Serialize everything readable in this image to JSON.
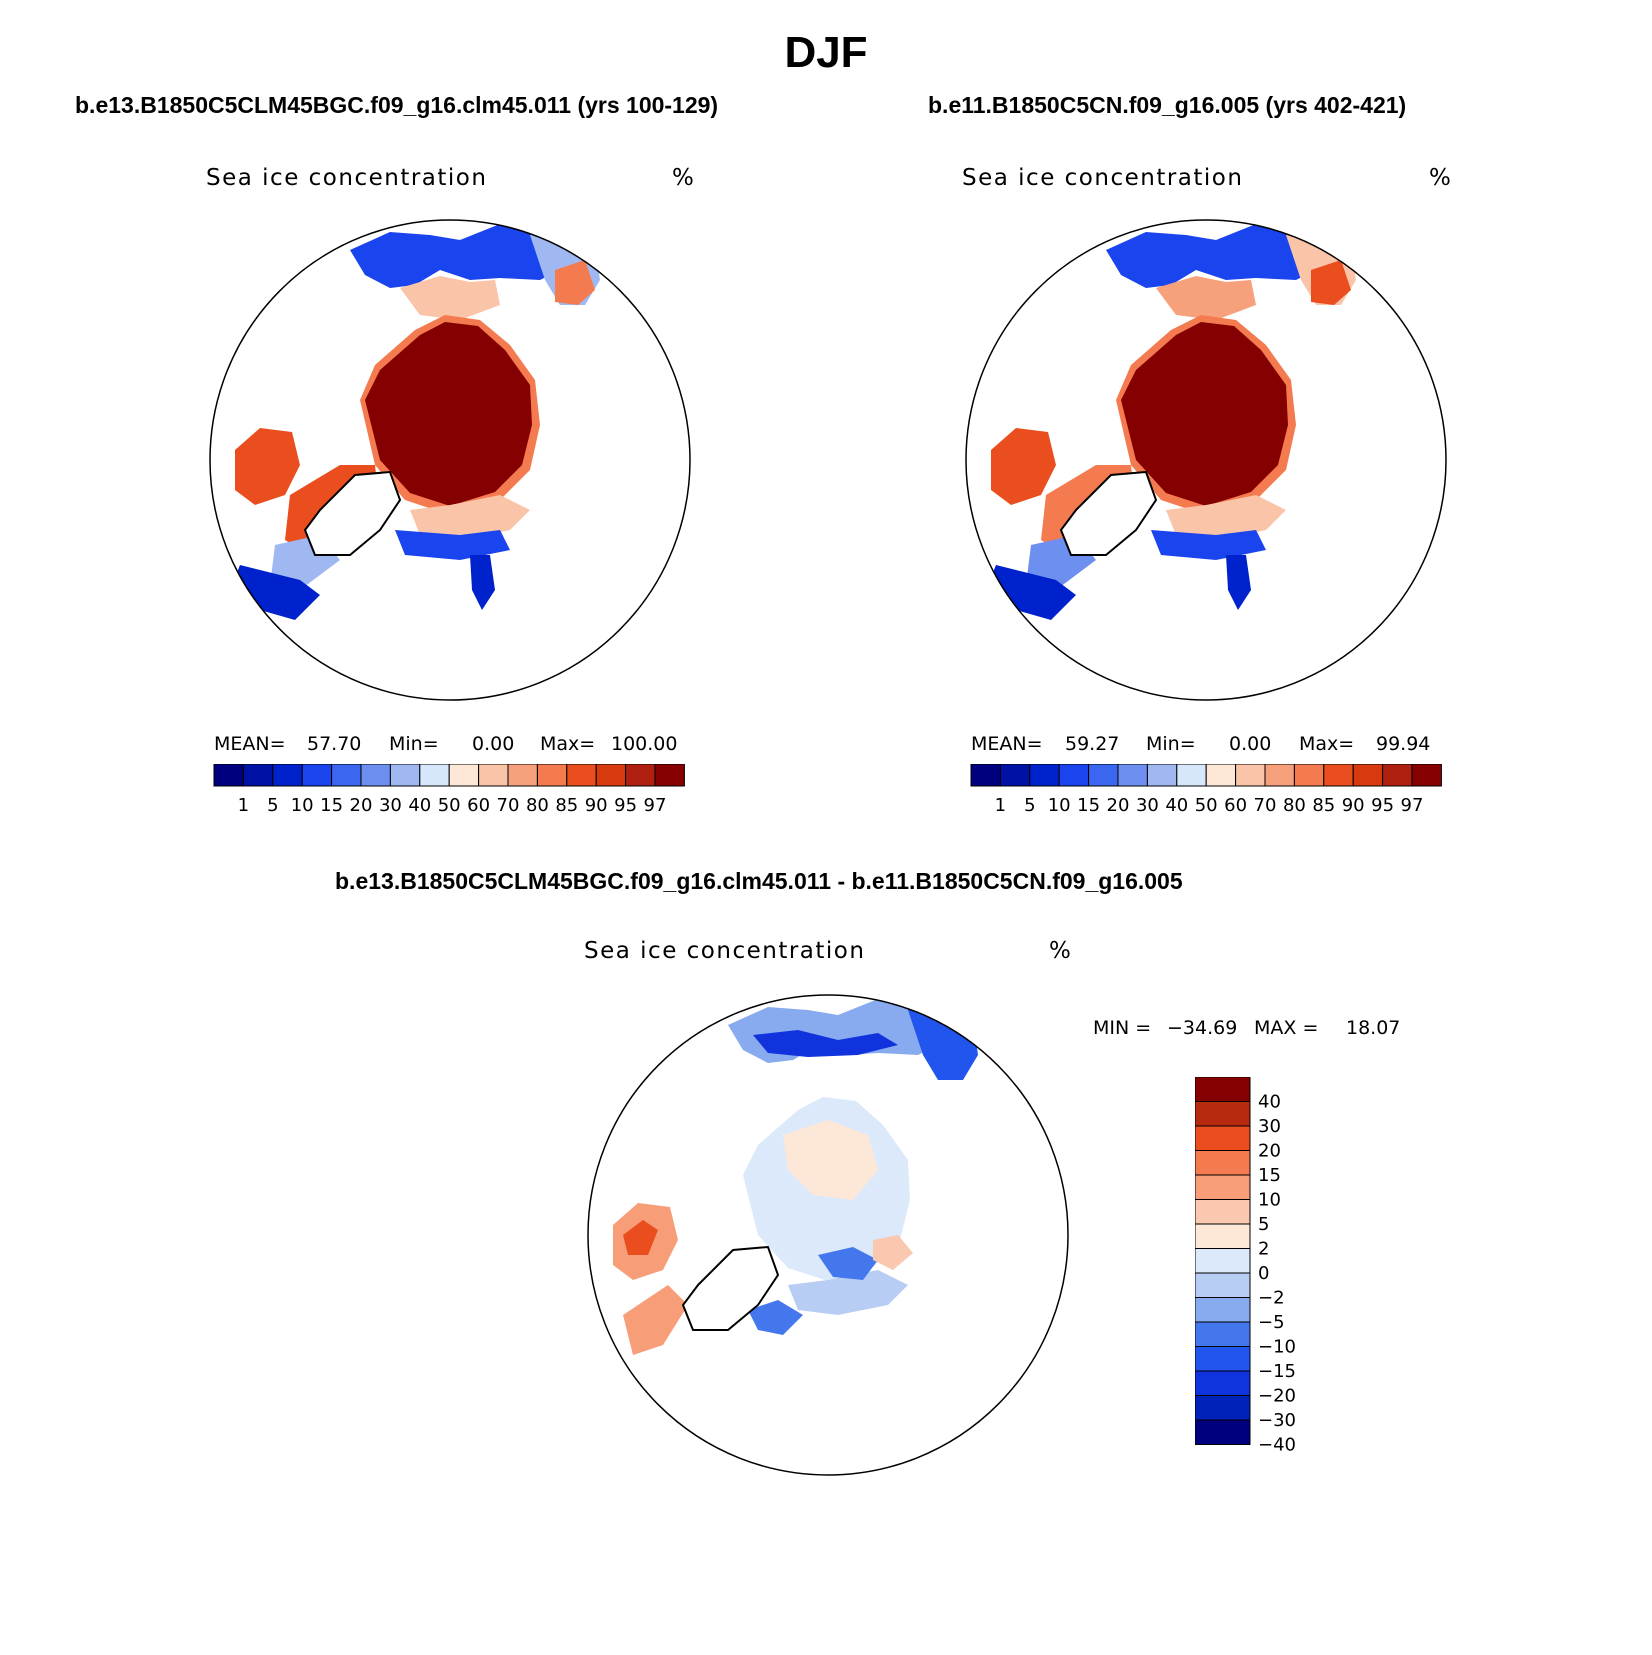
{
  "figure": {
    "title": "DJF",
    "colors": {
      "seq": [
        "#00007f",
        "#0011a6",
        "#0022cc",
        "#1a44ee",
        "#3a66f0",
        "#6d8ff0",
        "#a0b8f2",
        "#d6e6fb",
        "#fde8d8",
        "#fac4a8",
        "#f7a07c",
        "#f47a50",
        "#ea4e1e",
        "#d63a0e",
        "#b02010",
        "#850000"
      ],
      "diff": [
        "#00007f",
        "#0022b8",
        "#1033dd",
        "#2255ee",
        "#4477ee",
        "#88aaee",
        "#b8cdf3",
        "#dce9fb",
        "#fde8d8",
        "#fac8b0",
        "#f79e78",
        "#f47a50",
        "#ea4e1e",
        "#b82a10",
        "#850000"
      ]
    },
    "panels": [
      {
        "run": "b.e13.B1850C5CLM45BGC.f09_g16.clm45.011 (yrs 100-129)",
        "variable": "Sea ice concentration",
        "units": "%",
        "mean_label": "MEAN=",
        "mean": "57.70",
        "min_label": "Min=",
        "min": "0.00",
        "max_label": "Max=",
        "max": "100.00"
      },
      {
        "run": "b.e11.B1850C5CN.f09_g16.005 (yrs 402-421)",
        "variable": "Sea ice concentration",
        "units": "%",
        "mean_label": "MEAN=",
        "mean": "59.27",
        "min_label": "Min=",
        "min": "0.00",
        "max_label": "Max=",
        "max": "99.94"
      }
    ],
    "levels": [
      "1",
      "5",
      "10",
      "15",
      "20",
      "30",
      "40",
      "50",
      "60",
      "70",
      "80",
      "85",
      "90",
      "95",
      "97"
    ],
    "difference": {
      "title": "b.e13.B1850C5CLM45BGC.f09_g16.clm45.011 - b.e11.B1850C5CN.f09_g16.005",
      "variable": "Sea ice concentration",
      "units": "%",
      "min_label": "MIN =",
      "min": "−34.69",
      "max_label": "MAX =",
      "max": "18.07",
      "levels": [
        "40",
        "30",
        "20",
        "15",
        "10",
        "5",
        "2",
        "0",
        "−2",
        "−5",
        "−10",
        "−15",
        "−20",
        "−30",
        "−40"
      ]
    }
  }
}
